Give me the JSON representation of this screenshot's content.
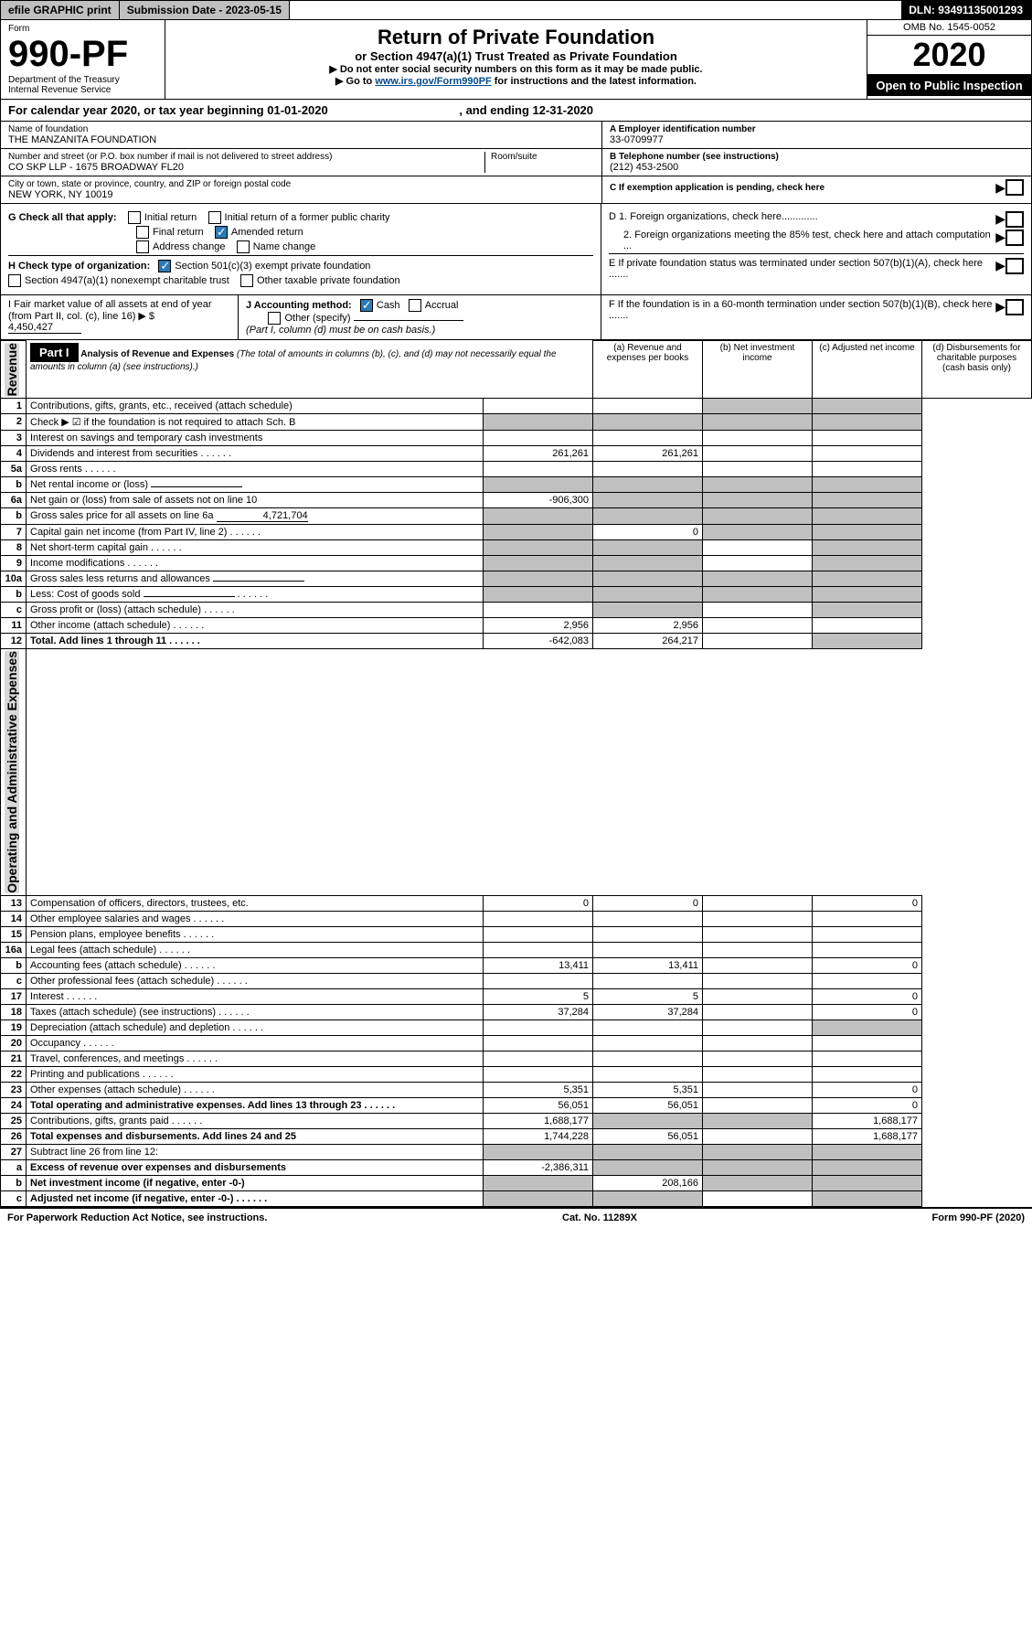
{
  "topbar": {
    "efile": "efile GRAPHIC print",
    "submission": "Submission Date - 2023-05-15",
    "dln": "DLN: 93491135001293"
  },
  "header": {
    "form_label": "Form",
    "form_number": "990-PF",
    "dept": "Department of the Treasury",
    "irs": "Internal Revenue Service",
    "title": "Return of Private Foundation",
    "subtitle": "or Section 4947(a)(1) Trust Treated as Private Foundation",
    "instruction1": "▶ Do not enter social security numbers on this form as it may be made public.",
    "instruction2_pre": "▶ Go to ",
    "instruction2_link": "www.irs.gov/Form990PF",
    "instruction2_post": " for instructions and the latest information.",
    "omb": "OMB No. 1545-0052",
    "year": "2020",
    "open": "Open to Public Inspection"
  },
  "calendar": {
    "text_pre": "For calendar year 2020, or tax year beginning ",
    "begin": "01-01-2020",
    "mid": " , and ending ",
    "end": "12-31-2020"
  },
  "foundation": {
    "name_label": "Name of foundation",
    "name": "THE MANZANITA FOUNDATION",
    "addr_label": "Number and street (or P.O. box number if mail is not delivered to street address)",
    "addr": "CO SKP LLP - 1675 BROADWAY FL20",
    "room_label": "Room/suite",
    "city_label": "City or town, state or province, country, and ZIP or foreign postal code",
    "city": "NEW YORK, NY  10019",
    "ein_label": "A Employer identification number",
    "ein": "33-0709977",
    "phone_label": "B Telephone number (see instructions)",
    "phone": "(212) 453-2500",
    "c_label": "C If exemption application is pending, check here",
    "d1": "D 1. Foreign organizations, check here.............",
    "d2": "2. Foreign organizations meeting the 85% test, check here and attach computation ...",
    "e": "E If private foundation status was terminated under section 507(b)(1)(A), check here .......",
    "f": "F If the foundation is in a 60-month termination under section 507(b)(1)(B), check here ......."
  },
  "checks": {
    "g_label": "G Check all that apply:",
    "initial": "Initial return",
    "initial_former": "Initial return of a former public charity",
    "final": "Final return",
    "amended": "Amended return",
    "addr_change": "Address change",
    "name_change": "Name change",
    "h_label": "H Check type of organization:",
    "h_501c3": "Section 501(c)(3) exempt private foundation",
    "h_4947": "Section 4947(a)(1) nonexempt charitable trust",
    "h_other": "Other taxable private foundation",
    "i_label": "I Fair market value of all assets at end of year (from Part II, col. (c), line 16) ▶ $",
    "i_value": "4,450,427",
    "j_label": "J Accounting method:",
    "j_cash": "Cash",
    "j_accrual": "Accrual",
    "j_other": "Other (specify)",
    "j_note": "(Part I, column (d) must be on cash basis.)"
  },
  "part1": {
    "label": "Part I",
    "title": "Analysis of Revenue and Expenses",
    "note": "(The total of amounts in columns (b), (c), and (d) may not necessarily equal the amounts in column (a) (see instructions).)",
    "col_a": "(a) Revenue and expenses per books",
    "col_b": "(b) Net investment income",
    "col_c": "(c) Adjusted net income",
    "col_d": "(d) Disbursements for charitable purposes (cash basis only)",
    "vert_revenue": "Revenue",
    "vert_expenses": "Operating and Administrative Expenses"
  },
  "rows": [
    {
      "n": "1",
      "d": "Contributions, gifts, grants, etc., received (attach schedule)",
      "a": "",
      "b": "",
      "c": "",
      "dd": "",
      "ga": false,
      "gc": true,
      "gd": true
    },
    {
      "n": "2",
      "d": "Check ▶ ☑ if the foundation is not required to attach Sch. B",
      "a": "",
      "b": "",
      "c": "",
      "dd": "",
      "ga": true,
      "gb": true,
      "gc": true,
      "gd": true,
      "bold_not": true
    },
    {
      "n": "3",
      "d": "Interest on savings and temporary cash investments",
      "a": "",
      "b": "",
      "c": "",
      "dd": ""
    },
    {
      "n": "4",
      "d": "Dividends and interest from securities",
      "a": "261,261",
      "b": "261,261",
      "c": "",
      "dd": "",
      "dots": true
    },
    {
      "n": "5a",
      "d": "Gross rents",
      "a": "",
      "b": "",
      "c": "",
      "dd": "",
      "dots": true
    },
    {
      "n": "b",
      "d": "Net rental income or (loss)",
      "a": "",
      "b": "",
      "c": "",
      "dd": "",
      "sub": true,
      "ga": true,
      "gb": true,
      "gc": true,
      "gd": true
    },
    {
      "n": "6a",
      "d": "Net gain or (loss) from sale of assets not on line 10",
      "a": "-906,300",
      "b": "",
      "c": "",
      "dd": "",
      "gb": true,
      "gc": true,
      "gd": true
    },
    {
      "n": "b",
      "d": "Gross sales price for all assets on line 6a",
      "a": "",
      "b": "",
      "c": "",
      "dd": "",
      "sub": true,
      "subval": "4,721,704",
      "ga": true,
      "gb": true,
      "gc": true,
      "gd": true
    },
    {
      "n": "7",
      "d": "Capital gain net income (from Part IV, line 2)",
      "a": "",
      "b": "0",
      "c": "",
      "dd": "",
      "ga": true,
      "gc": true,
      "gd": true,
      "dots": true
    },
    {
      "n": "8",
      "d": "Net short-term capital gain",
      "a": "",
      "b": "",
      "c": "",
      "dd": "",
      "ga": true,
      "gb": true,
      "gd": true,
      "dots": true
    },
    {
      "n": "9",
      "d": "Income modifications",
      "a": "",
      "b": "",
      "c": "",
      "dd": "",
      "ga": true,
      "gb": true,
      "gd": true,
      "dots": true
    },
    {
      "n": "10a",
      "d": "Gross sales less returns and allowances",
      "a": "",
      "b": "",
      "c": "",
      "dd": "",
      "sub": true,
      "ga": true,
      "gb": true,
      "gc": true,
      "gd": true
    },
    {
      "n": "b",
      "d": "Less: Cost of goods sold",
      "a": "",
      "b": "",
      "c": "",
      "dd": "",
      "sub": true,
      "ga": true,
      "gb": true,
      "gc": true,
      "gd": true,
      "dots": true
    },
    {
      "n": "c",
      "d": "Gross profit or (loss) (attach schedule)",
      "a": "",
      "b": "",
      "c": "",
      "dd": "",
      "gb": true,
      "gd": true,
      "dots": true
    },
    {
      "n": "11",
      "d": "Other income (attach schedule)",
      "a": "2,956",
      "b": "2,956",
      "c": "",
      "dd": "",
      "dots": true
    },
    {
      "n": "12",
      "d": "Total. Add lines 1 through 11",
      "a": "-642,083",
      "b": "264,217",
      "c": "",
      "dd": "",
      "bold": true,
      "gd": true,
      "dots": true
    },
    {
      "n": "13",
      "d": "Compensation of officers, directors, trustees, etc.",
      "a": "0",
      "b": "0",
      "c": "",
      "dd": "0"
    },
    {
      "n": "14",
      "d": "Other employee salaries and wages",
      "a": "",
      "b": "",
      "c": "",
      "dd": "",
      "dots": true
    },
    {
      "n": "15",
      "d": "Pension plans, employee benefits",
      "a": "",
      "b": "",
      "c": "",
      "dd": "",
      "dots": true
    },
    {
      "n": "16a",
      "d": "Legal fees (attach schedule)",
      "a": "",
      "b": "",
      "c": "",
      "dd": "",
      "dots": true
    },
    {
      "n": "b",
      "d": "Accounting fees (attach schedule)",
      "a": "13,411",
      "b": "13,411",
      "c": "",
      "dd": "0",
      "dots": true
    },
    {
      "n": "c",
      "d": "Other professional fees (attach schedule)",
      "a": "",
      "b": "",
      "c": "",
      "dd": "",
      "dots": true
    },
    {
      "n": "17",
      "d": "Interest",
      "a": "5",
      "b": "5",
      "c": "",
      "dd": "0",
      "dots": true
    },
    {
      "n": "18",
      "d": "Taxes (attach schedule) (see instructions)",
      "a": "37,284",
      "b": "37,284",
      "c": "",
      "dd": "0",
      "dots": true
    },
    {
      "n": "19",
      "d": "Depreciation (attach schedule) and depletion",
      "a": "",
      "b": "",
      "c": "",
      "dd": "",
      "gd": true,
      "dots": true
    },
    {
      "n": "20",
      "d": "Occupancy",
      "a": "",
      "b": "",
      "c": "",
      "dd": "",
      "dots": true
    },
    {
      "n": "21",
      "d": "Travel, conferences, and meetings",
      "a": "",
      "b": "",
      "c": "",
      "dd": "",
      "dots": true
    },
    {
      "n": "22",
      "d": "Printing and publications",
      "a": "",
      "b": "",
      "c": "",
      "dd": "",
      "dots": true
    },
    {
      "n": "23",
      "d": "Other expenses (attach schedule)",
      "a": "5,351",
      "b": "5,351",
      "c": "",
      "dd": "0",
      "dots": true
    },
    {
      "n": "24",
      "d": "Total operating and administrative expenses. Add lines 13 through 23",
      "a": "56,051",
      "b": "56,051",
      "c": "",
      "dd": "0",
      "bold": true,
      "dots": true
    },
    {
      "n": "25",
      "d": "Contributions, gifts, grants paid",
      "a": "1,688,177",
      "b": "",
      "c": "",
      "dd": "1,688,177",
      "gb": true,
      "gc": true,
      "dots": true
    },
    {
      "n": "26",
      "d": "Total expenses and disbursements. Add lines 24 and 25",
      "a": "1,744,228",
      "b": "56,051",
      "c": "",
      "dd": "1,688,177",
      "bold": true
    },
    {
      "n": "27",
      "d": "Subtract line 26 from line 12:",
      "a": "",
      "b": "",
      "c": "",
      "dd": "",
      "ga": true,
      "gb": true,
      "gc": true,
      "gd": true
    },
    {
      "n": "a",
      "d": "Excess of revenue over expenses and disbursements",
      "a": "-2,386,311",
      "b": "",
      "c": "",
      "dd": "",
      "bold": true,
      "gb": true,
      "gc": true,
      "gd": true
    },
    {
      "n": "b",
      "d": "Net investment income (if negative, enter -0-)",
      "a": "",
      "b": "208,166",
      "c": "",
      "dd": "",
      "bold": true,
      "ga": true,
      "gc": true,
      "gd": true
    },
    {
      "n": "c",
      "d": "Adjusted net income (if negative, enter -0-)",
      "a": "",
      "b": "",
      "c": "",
      "dd": "",
      "bold": true,
      "ga": true,
      "gb": true,
      "gd": true,
      "dots": true
    }
  ],
  "footer": {
    "left": "For Paperwork Reduction Act Notice, see instructions.",
    "center": "Cat. No. 11289X",
    "right": "Form 990-PF (2020)"
  }
}
